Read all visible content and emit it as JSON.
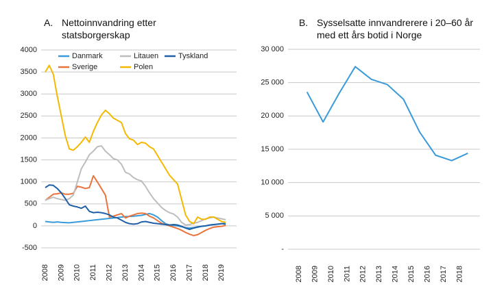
{
  "chart_data": [
    {
      "type": "line",
      "panel": "A.",
      "title": "Nettoinnvandring etter statsborgerskap",
      "x": [
        2008,
        2008.25,
        2008.5,
        2008.75,
        2009,
        2009.25,
        2009.5,
        2009.75,
        2010,
        2010.25,
        2010.5,
        2010.75,
        2011,
        2011.25,
        2011.5,
        2011.75,
        2012,
        2012.25,
        2012.5,
        2012.75,
        2013,
        2013.25,
        2013.5,
        2013.75,
        2014,
        2014.25,
        2014.5,
        2014.75,
        2015,
        2015.25,
        2015.5,
        2015.75,
        2016,
        2016.25,
        2016.5,
        2016.75,
        2017,
        2017.25,
        2017.5,
        2017.75,
        2018,
        2018.25,
        2018.5,
        2018.75,
        2019,
        2019.25
      ],
      "series": [
        {
          "name": "Danmark",
          "color": "#3a9ad9",
          "values": [
            100,
            90,
            80,
            90,
            80,
            75,
            70,
            80,
            90,
            100,
            110,
            120,
            130,
            140,
            150,
            160,
            170,
            180,
            190,
            200,
            210,
            215,
            220,
            230,
            240,
            260,
            280,
            250,
            200,
            120,
            50,
            20,
            10,
            0,
            -20,
            -40,
            -50,
            -40,
            -20,
            -10,
            0,
            20,
            30,
            40,
            50,
            60
          ]
        },
        {
          "name": "Sverige",
          "color": "#e8743b",
          "values": [
            580,
            650,
            720,
            730,
            750,
            720,
            720,
            740,
            900,
            880,
            850,
            870,
            1140,
            1000,
            850,
            700,
            200,
            220,
            250,
            280,
            180,
            220,
            250,
            280,
            290,
            280,
            220,
            180,
            120,
            60,
            30,
            0,
            -30,
            -60,
            -100,
            -150,
            -190,
            -220,
            -200,
            -150,
            -100,
            -60,
            -30,
            -20,
            -10,
            10
          ]
        },
        {
          "name": "Litauen",
          "color": "#bdbdbd",
          "values": [
            580,
            620,
            650,
            620,
            600,
            580,
            620,
            700,
            1000,
            1300,
            1450,
            1620,
            1700,
            1800,
            1820,
            1700,
            1620,
            1530,
            1500,
            1400,
            1220,
            1180,
            1100,
            1050,
            1020,
            900,
            750,
            620,
            520,
            420,
            350,
            300,
            270,
            200,
            80,
            20,
            30,
            60,
            80,
            120,
            160,
            180,
            200,
            180,
            160,
            140
          ]
        },
        {
          "name": "Polen",
          "color": "#f5b800",
          "values": [
            3500,
            3650,
            3450,
            2950,
            2500,
            2050,
            1750,
            1720,
            1800,
            1900,
            2020,
            1900,
            2150,
            2350,
            2520,
            2630,
            2550,
            2450,
            2400,
            2350,
            2100,
            1980,
            1950,
            1850,
            1900,
            1880,
            1800,
            1750,
            1600,
            1450,
            1300,
            1150,
            1050,
            950,
            600,
            250,
            100,
            50,
            200,
            150,
            150,
            200,
            200,
            150,
            100,
            80
          ]
        },
        {
          "name": "Tyskland",
          "color": "#1f5fa6",
          "values": [
            870,
            930,
            920,
            850,
            750,
            620,
            480,
            450,
            430,
            400,
            450,
            330,
            300,
            310,
            300,
            280,
            250,
            200,
            180,
            130,
            80,
            50,
            40,
            50,
            90,
            100,
            80,
            60,
            50,
            40,
            30,
            20,
            30,
            20,
            -10,
            -50,
            -80,
            -50,
            -30,
            -10,
            0,
            20,
            30,
            40,
            50,
            40
          ]
        }
      ],
      "xlim": [
        2008,
        2019.5
      ],
      "xticks": [
        2008,
        2009,
        2010,
        2011,
        2012,
        2013,
        2014,
        2015,
        2016,
        2017,
        2018,
        2019
      ],
      "ylim": [
        -500,
        4000
      ],
      "yticks": [
        -500,
        0,
        500,
        1000,
        1500,
        2000,
        2500,
        3000,
        3500,
        4000
      ],
      "grid": true
    },
    {
      "type": "line",
      "panel": "B.",
      "title": "Sysselsatte innvandrerere i 20–60 år med ett års botid i Norge",
      "x": [
        2008.5,
        2009.5,
        2010.5,
        2011.5,
        2012.5,
        2013.5,
        2014.5,
        2015.5,
        2016.5,
        2017.5,
        2018.5
      ],
      "series": [
        {
          "color": "#3a9ad9",
          "values": [
            23600,
            19100,
            23400,
            27400,
            25500,
            24700,
            22500,
            17600,
            14100,
            13300,
            14400
          ]
        }
      ],
      "xlim": [
        2008,
        2019
      ],
      "xticks": [
        2008,
        2009,
        2010,
        2011,
        2012,
        2013,
        2014,
        2015,
        2016,
        2017,
        2018
      ],
      "ylim": [
        0,
        30000
      ],
      "yticks": [
        {
          "value": 0,
          "label": "-"
        },
        {
          "value": 5000,
          "label": "5 000"
        },
        {
          "value": 10000,
          "label": "10 000"
        },
        {
          "value": 15000,
          "label": "15 000"
        },
        {
          "value": 20000,
          "label": "20 000"
        },
        {
          "value": 25000,
          "label": "25 000"
        },
        {
          "value": 30000,
          "label": "30 000"
        }
      ],
      "grid": true
    }
  ]
}
